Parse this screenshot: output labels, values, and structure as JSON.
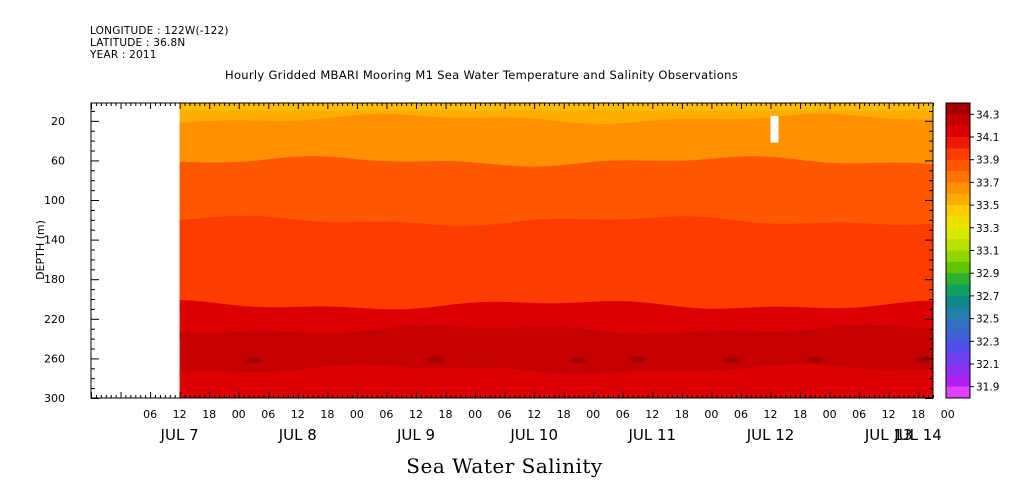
{
  "header": {
    "longitude": "LONGITUDE : 122W(-122)",
    "latitude": "LATITUDE : 36.8N",
    "year": "YEAR : 2011"
  },
  "chart_data": {
    "type": "heatmap",
    "title": "Hourly Gridded MBARI Mooring M1 Sea Water Temperature and Salinity Observations",
    "subtitle": "Sea Water Salinity",
    "ylabel": "DEPTH (m)",
    "xlabel": "",
    "ylim": [
      300,
      2
    ],
    "y_ticks": [
      "20",
      "60",
      "100",
      "140",
      "180",
      "220",
      "260",
      "300"
    ],
    "y_tick_values": [
      20,
      60,
      100,
      140,
      180,
      220,
      260,
      300
    ],
    "x_hours_start": "JUL 6 18:00",
    "x_hour_ticks": [
      "06",
      "12",
      "18",
      "00",
      "06",
      "12",
      "18",
      "00",
      "06",
      "12",
      "18",
      "00",
      "06",
      "12",
      "18",
      "00",
      "06",
      "12",
      "18",
      "00",
      "06",
      "12",
      "18",
      "00",
      "06",
      "12",
      "18",
      "00"
    ],
    "x_day_labels": [
      "JUL  7",
      "JUL  8",
      "JUL  9",
      "JUL 10",
      "JUL 11",
      "JUL 12",
      "JUL 13",
      "JUL 14"
    ],
    "data_start": "JUL 7 12:00",
    "data_end": "JUL 14 02:00",
    "colorbar": {
      "labels": [
        "34.3",
        "34.1",
        "33.9",
        "33.7",
        "33.5",
        "33.3",
        "33.1",
        "32.9",
        "32.7",
        "32.5",
        "32.3",
        "32.1",
        "31.9"
      ],
      "levels": [
        34.4,
        34.3,
        34.2,
        34.1,
        34.0,
        33.9,
        33.8,
        33.7,
        33.6,
        33.5,
        33.4,
        33.3,
        33.2,
        33.1,
        33.0,
        32.9,
        32.8,
        32.7,
        32.6,
        32.5,
        32.4,
        32.3,
        32.2,
        32.1,
        32.0,
        31.9
      ],
      "colors": [
        "#a50000",
        "#c40000",
        "#dc0000",
        "#ee1a00",
        "#ff3c00",
        "#ff5800",
        "#ff7400",
        "#ff9000",
        "#ffac00",
        "#ffca00",
        "#f0e000",
        "#d8e800",
        "#b8e000",
        "#90d400",
        "#60c400",
        "#30b030",
        "#10a060",
        "#108888",
        "#2080a8",
        "#3070c0",
        "#4060d8",
        "#5050e8",
        "#7040f0",
        "#9030f0",
        "#b020f0",
        "#e040ff"
      ]
    },
    "layers": [
      {
        "range": "33.7–33.8",
        "depth": [
          2,
          22
        ],
        "color": "#ffac00"
      },
      {
        "range": "33.8–33.9",
        "depth": [
          22,
          65
        ],
        "color": "#ff9000"
      },
      {
        "range": "33.9–34.0",
        "depth": [
          65,
          125
        ],
        "color": "#ff5800"
      },
      {
        "range": "34.0–34.1",
        "depth": [
          125,
          210
        ],
        "color": "#ff3c00"
      },
      {
        "range": "34.1–34.2",
        "depth": [
          210,
          235
        ],
        "color": "#dc0000"
      },
      {
        "range": "34.2–34.3",
        "depth": [
          235,
          275
        ],
        "color": "#c40000"
      },
      {
        "range": "34.1–34.2",
        "depth": [
          275,
          300
        ],
        "color": "#dc0000"
      }
    ]
  }
}
